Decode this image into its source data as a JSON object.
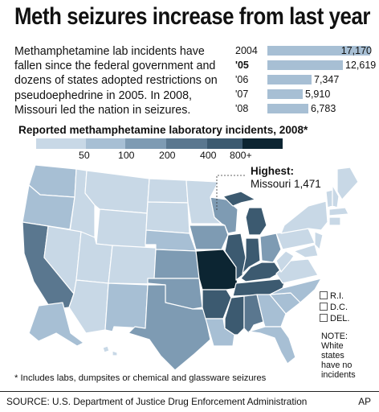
{
  "title": "Meth seizures increase from last year",
  "intro": "Methamphetamine lab incidents have fallen since the federal government and dozens of states adopted restrictions on pseudoephedrine in 2005. In 2008, Missouri led the nation in seizures.",
  "trend": [
    {
      "year": "2004",
      "value": 17170,
      "label": "17,170",
      "bold": false
    },
    {
      "year": "'05",
      "value": 12619,
      "label": "12,619",
      "bold": true
    },
    {
      "year": "'06",
      "value": 7347,
      "label": "7,347",
      "bold": false
    },
    {
      "year": "'07",
      "value": 5910,
      "label": "5,910",
      "bold": false
    },
    {
      "year": "'08",
      "value": 6783,
      "label": "6,783",
      "bold": false
    }
  ],
  "map_title": "Reported methamphetamine laboratory incidents, 2008*",
  "legend": {
    "colors": [
      "#c8d8e6",
      "#a7bfd4",
      "#7e9bb3",
      "#5a778f",
      "#3c5a70",
      "#0c2532"
    ],
    "labels": [
      "50",
      "100",
      "200",
      "400",
      "800+"
    ]
  },
  "highest": {
    "label": "Highest:",
    "value": "Missouri 1,471"
  },
  "small_states": [
    "R.I.",
    "D.C.",
    "DEL."
  ],
  "note": [
    "NOTE:",
    "White",
    "states",
    "have no",
    "incidents"
  ],
  "footnote": "* Includes labs, dumpsites or chemical and glassware seizures",
  "source": "SOURCE: U.S. Department of Justice Drug Enforcement Administration",
  "credit": "AP",
  "colors": {
    "trend_bar": "#a7bfd4",
    "state_stroke": "#ffffff",
    "background": "#ffffff"
  }
}
